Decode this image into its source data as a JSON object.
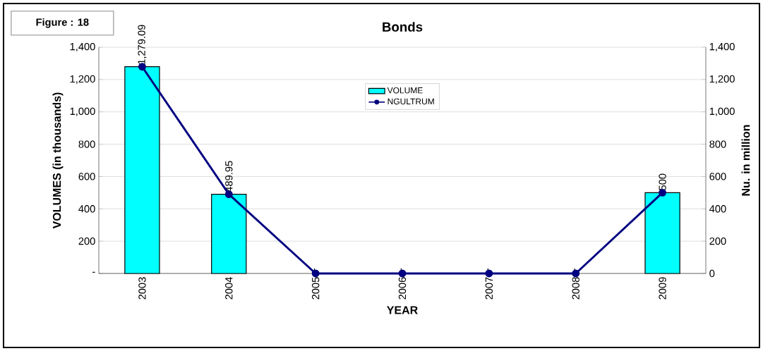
{
  "chart_data": {
    "type": "bar",
    "title": "Bonds",
    "xlabel": "YEAR",
    "ylabel": "VOLUMES (in thousands)",
    "y2label": "Nu. in million",
    "annotations": [
      "Figure : 18"
    ],
    "categories": [
      "2003",
      "2004",
      "2005",
      "2006",
      "2007",
      "2008",
      "2009"
    ],
    "series": [
      {
        "name": "VOLUME",
        "color": "#00ffff",
        "values": [
          1279.09,
          489.95,
          0,
          0,
          0,
          0,
          500
        ],
        "value_labels": [
          "1,279.09",
          "489.95",
          "-",
          "-",
          "-",
          "-",
          "500"
        ]
      },
      {
        "name": "NGULTRUM",
        "type": "line",
        "axis": "y2",
        "color": "#000080",
        "marker": "circle",
        "values": [
          1279,
          490,
          0,
          0,
          0,
          0,
          500
        ]
      }
    ],
    "ylim": [
      0,
      1400
    ],
    "yticks": [
      {
        "value": 0,
        "label": "-"
      },
      200,
      400,
      600,
      800,
      {
        "value": 1000,
        "label": "1,000"
      },
      {
        "value": 1200,
        "label": "1,200"
      },
      {
        "value": 1400,
        "label": "1,400"
      }
    ],
    "y2lim": [
      0,
      1400
    ],
    "y2ticks": [
      0,
      200,
      400,
      600,
      800,
      {
        "value": 1000,
        "label": "1,000"
      },
      {
        "value": 1200,
        "label": "1,200"
      },
      {
        "value": 1400,
        "label": "1,400"
      }
    ],
    "grid": "y",
    "legend": "top"
  }
}
